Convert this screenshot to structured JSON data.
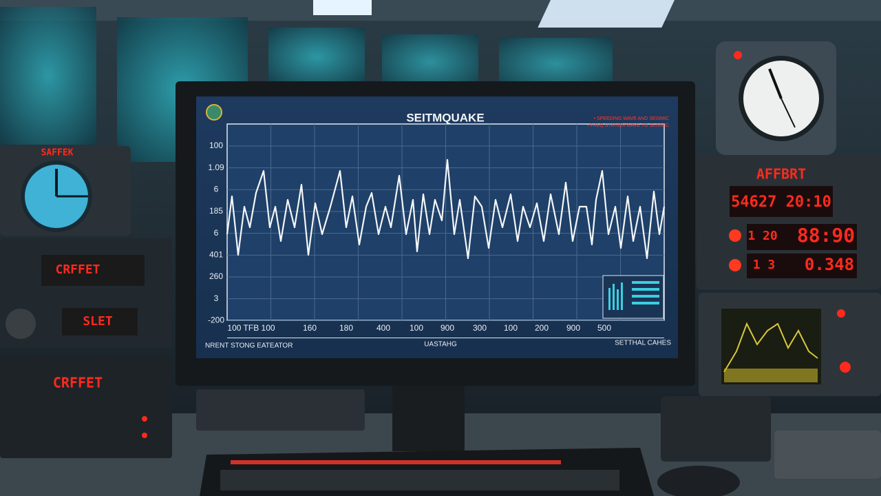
{
  "screen": {
    "title": "SEITMQUAKE",
    "alerts": [
      "• SPEEDING WAVE AND SEISMIC",
      "• FREQ STATION WAVE TO SEISMIC"
    ],
    "y_labels": [
      "100",
      "1.09",
      "6",
      "185",
      "6",
      "401",
      "260",
      "3",
      "-200"
    ],
    "x_labels": [
      "100 TFB 100",
      "160",
      "180",
      "400",
      "100",
      "900",
      "300",
      "100",
      "200",
      "900",
      "500"
    ],
    "footer": {
      "left": "NRENT STONG EATEATOR",
      "center": "UASTAHG",
      "right": "SETTHAL CAHES"
    }
  },
  "left_panels": [
    "SAFFEK",
    "CRFFET",
    "SLET",
    "CRFFET"
  ],
  "right_panels": {
    "label": "AFFBRT",
    "readout": "54627 20:10",
    "row1_left": "1 20",
    "row1_right": "88:90",
    "row2_left": "1 3",
    "row2_right": "0.348"
  }
}
